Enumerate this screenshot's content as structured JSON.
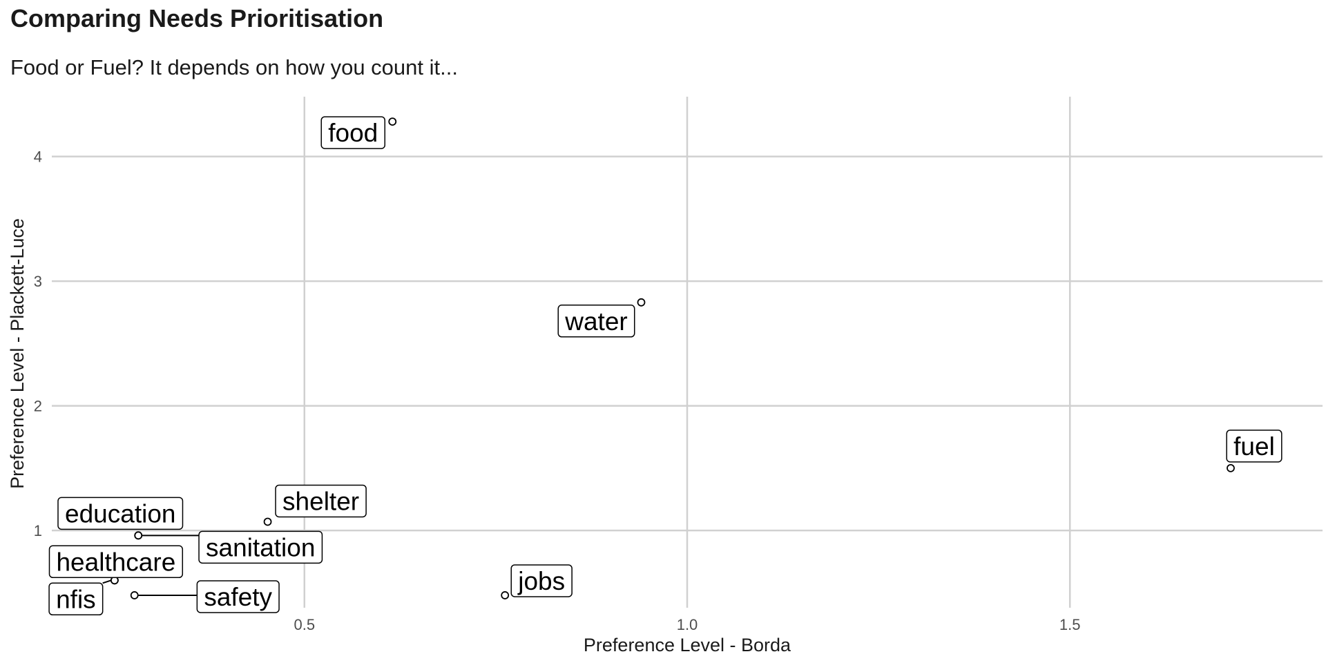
{
  "chart_data": {
    "type": "scatter",
    "title": "Comparing Needs Prioritisation",
    "subtitle": "Food or Fuel? It depends on how you count it...",
    "xlabel": "Preference Level - Borda",
    "ylabel": "Preference Level - Plackett-Luce",
    "xlim": [
      0.17,
      1.83
    ],
    "ylim": [
      0.38,
      4.48
    ],
    "xticks": [
      0.5,
      1.0,
      1.5
    ],
    "xtick_labels": [
      "0.5",
      "1.0",
      "1.5"
    ],
    "yticks": [
      1,
      2,
      3,
      4
    ],
    "ytick_labels": [
      "1",
      "2",
      "3",
      "4"
    ],
    "grid": true,
    "points": [
      {
        "label": "food",
        "x": 0.615,
        "y": 4.28
      },
      {
        "label": "water",
        "x": 0.94,
        "y": 2.83
      },
      {
        "label": "fuel",
        "x": 1.71,
        "y": 1.5
      },
      {
        "label": "shelter",
        "x": 0.452,
        "y": 1.07
      },
      {
        "label": "education",
        "x": 0.283,
        "y": 0.96
      },
      {
        "label": "sanitation",
        "x": 0.283,
        "y": 0.96
      },
      {
        "label": "healthcare",
        "x": 0.252,
        "y": 0.6
      },
      {
        "label": "nfis",
        "x": 0.252,
        "y": 0.6
      },
      {
        "label": "safety",
        "x": 0.278,
        "y": 0.48
      },
      {
        "label": "jobs",
        "x": 0.762,
        "y": 0.48
      }
    ]
  }
}
